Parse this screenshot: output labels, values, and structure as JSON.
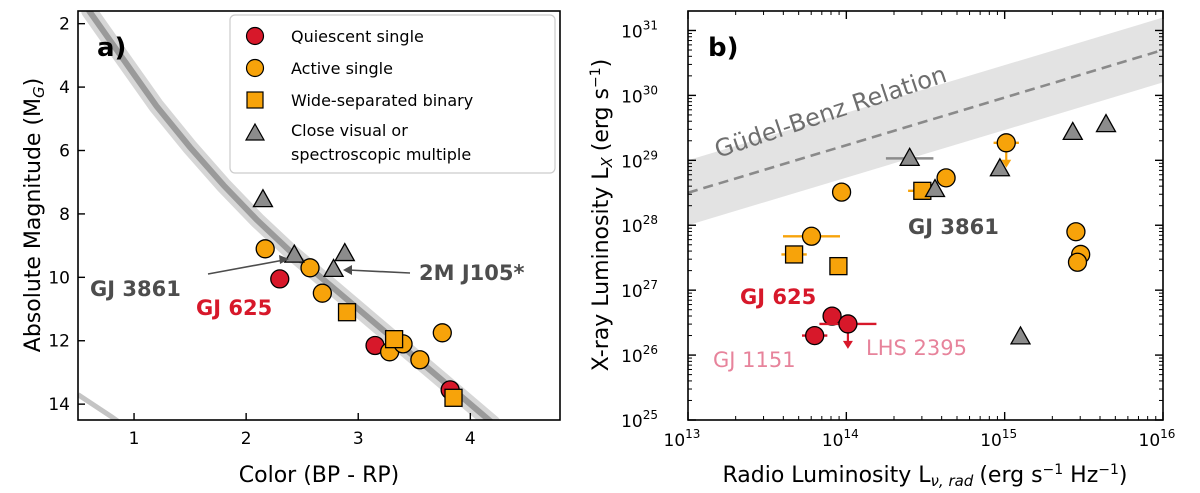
{
  "chart_data": [
    {
      "type": "scatter",
      "panel_label": "a)",
      "xlabel": "Color (BP - RP)",
      "ylabel": "Absolute Magnitude (M",
      "ylabel_sub": "G",
      "ylabel_close": ")",
      "xlim": [
        0.5,
        4.8
      ],
      "ylim": [
        14.5,
        1.6
      ],
      "x_ticks": [
        "1",
        "2",
        "3",
        "4"
      ],
      "y_ticks": [
        "2",
        "4",
        "6",
        "8",
        "10",
        "12",
        "14"
      ],
      "x_tick_values": [
        1,
        2,
        3,
        4
      ],
      "y_tick_values": [
        2,
        4,
        6,
        8,
        10,
        12,
        14
      ],
      "legend_position": "top-right",
      "legend": [
        {
          "label": "Quiescent single",
          "marker": "circle",
          "color": "#d7182a"
        },
        {
          "label": "Active single",
          "marker": "circle",
          "color": "#f7a30a"
        },
        {
          "label": "Wide-separated binary",
          "marker": "square",
          "color": "#f7a30a"
        },
        {
          "label": "Close visual or",
          "label2": "spectroscopic multiple",
          "marker": "triangle",
          "color": "#8c8c8c"
        }
      ],
      "series": [
        {
          "name": "Quiescent single",
          "marker": "circle",
          "color": "#d7182a",
          "points": [
            [
              2.3,
              10.05
            ],
            [
              3.15,
              12.15
            ],
            [
              3.82,
              13.55
            ]
          ]
        },
        {
          "name": "Active single",
          "marker": "circle",
          "color": "#f7a30a",
          "points": [
            [
              2.17,
              9.1
            ],
            [
              2.57,
              9.7
            ],
            [
              2.68,
              10.5
            ],
            [
              3.28,
              12.35
            ],
            [
              3.4,
              12.1
            ],
            [
              3.55,
              12.6
            ],
            [
              3.75,
              11.75
            ]
          ]
        },
        {
          "name": "Wide-separated binary",
          "marker": "square",
          "color": "#f7a30a",
          "points": [
            [
              2.9,
              11.1
            ],
            [
              3.32,
              11.95
            ],
            [
              3.85,
              13.8
            ]
          ]
        },
        {
          "name": "Close visual or spectroscopic multiple",
          "marker": "triangle",
          "color": "#8c8c8c",
          "points": [
            [
              2.15,
              7.55
            ],
            [
              2.43,
              9.3
            ],
            [
              2.78,
              9.75
            ],
            [
              2.88,
              9.25
            ]
          ]
        }
      ],
      "annotations": [
        {
          "text": "GJ 3861",
          "color": "#4d4d4d"
        },
        {
          "text": "GJ 625",
          "color": "#d7182a"
        },
        {
          "text": "2M J105*",
          "color": "#4d4d4d"
        }
      ],
      "background_main_sequence": "gray density band"
    },
    {
      "type": "scatter",
      "panel_label": "b)",
      "xlabel": "Radio Luminosity L",
      "xlabel_sub": "ν, rad",
      "xlabel_units": "(erg s",
      "xlabel_units_exp": "−1",
      "xlabel_units_mid": " Hz",
      "xlabel_units_exp2": "−1",
      "xlabel_units_end": ")",
      "ylabel": "X-ray Luminosity L",
      "ylabel_sub": "X",
      "ylabel_units": "(erg s",
      "ylabel_units_exp": "−1",
      "ylabel_units_end": ")",
      "x_scale": "log",
      "y_scale": "log",
      "xlim_log10": [
        13,
        16
      ],
      "ylim_log10": [
        25,
        31.3
      ],
      "x_ticks": [
        {
          "base": "10",
          "exp": "13"
        },
        {
          "base": "10",
          "exp": "14"
        },
        {
          "base": "10",
          "exp": "15"
        },
        {
          "base": "10",
          "exp": "16"
        }
      ],
      "y_ticks": [
        {
          "base": "10",
          "exp": "25"
        },
        {
          "base": "10",
          "exp": "26"
        },
        {
          "base": "10",
          "exp": "27"
        },
        {
          "base": "10",
          "exp": "28"
        },
        {
          "base": "10",
          "exp": "29"
        },
        {
          "base": "10",
          "exp": "30"
        },
        {
          "base": "10",
          "exp": "31"
        }
      ],
      "x_tick_log10": [
        13,
        14,
        15,
        16
      ],
      "y_tick_log10": [
        25,
        26,
        27,
        28,
        29,
        30,
        31
      ],
      "relation": {
        "label": "Güdel-Benz Relation",
        "line_log10": [
          [
            13,
            28.5
          ],
          [
            16,
            30.7
          ]
        ],
        "band_half_width_dex": 0.5
      },
      "series": [
        {
          "name": "Quiescent single",
          "marker": "circle",
          "color": "#d7182a",
          "points": [
            {
              "x": 13.8,
              "y": 26.3,
              "xerr": 0.08
            },
            {
              "x": 13.91,
              "y": 26.6
            },
            {
              "x": 14.01,
              "y": 26.48,
              "xerr": 0.18,
              "upper_limit_y": true
            }
          ]
        },
        {
          "name": "Active single",
          "marker": "circle",
          "color": "#f7a30a",
          "points": [
            {
              "x": 13.78,
              "y": 27.83,
              "xerr": 0.18
            },
            {
              "x": 13.97,
              "y": 28.51
            },
            {
              "x": 14.63,
              "y": 28.73
            },
            {
              "x": 15.01,
              "y": 29.27,
              "xerr": 0.08,
              "upper_limit_y": true
            },
            {
              "x": 15.45,
              "y": 27.9
            },
            {
              "x": 15.48,
              "y": 27.55
            },
            {
              "x": 15.46,
              "y": 27.43
            }
          ]
        },
        {
          "name": "Wide-separated binary",
          "marker": "square",
          "color": "#f7a30a",
          "points": [
            {
              "x": 13.67,
              "y": 27.55,
              "xerr": 0.08
            },
            {
              "x": 13.95,
              "y": 27.37
            },
            {
              "x": 14.48,
              "y": 28.53,
              "xerr": 0.09
            }
          ]
        },
        {
          "name": "Close visual or spectroscopic multiple",
          "marker": "triangle",
          "color": "#8c8c8c",
          "points": [
            {
              "x": 14.4,
              "y": 29.03,
              "xerr": 0.15
            },
            {
              "x": 14.56,
              "y": 28.55
            },
            {
              "x": 14.97,
              "y": 28.87
            },
            {
              "x": 15.1,
              "y": 26.28
            },
            {
              "x": 15.43,
              "y": 29.43
            },
            {
              "x": 15.64,
              "y": 29.55
            }
          ]
        }
      ],
      "annotations": [
        {
          "text": "GJ 3861",
          "color": "#4d4d4d"
        },
        {
          "text": "GJ 625",
          "color": "#d7182a"
        },
        {
          "text": "GJ 1151",
          "color": "#e7839b"
        },
        {
          "text": "LHS 2395",
          "color": "#e7839b"
        }
      ]
    }
  ]
}
